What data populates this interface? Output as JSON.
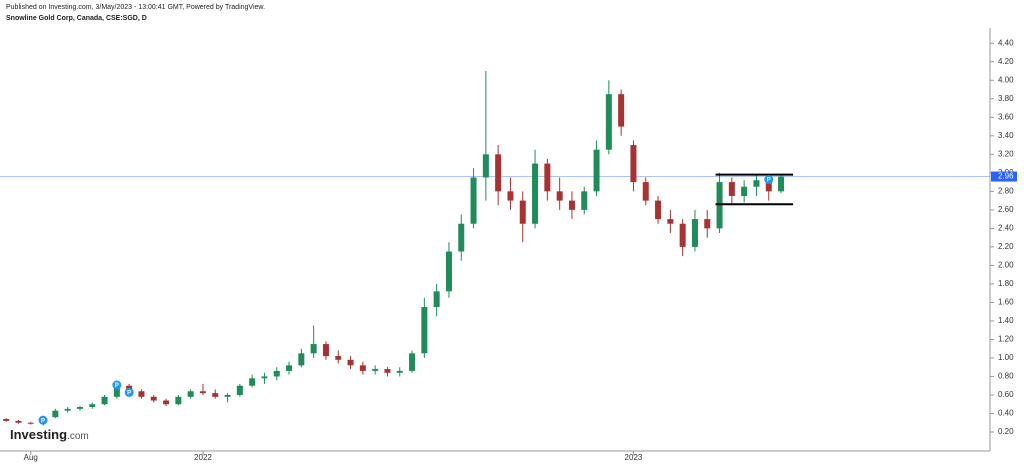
{
  "header": {
    "published": "Published on Investing.com, 3/May/2023 - 13:00:41 GMT, Powered by TradingView.",
    "symbol": "Snowline Gold Corp, Canada, CSE:SGD, D"
  },
  "logo": {
    "name": "Investing",
    "suffix": ".com"
  },
  "chart_data": {
    "type": "candlestick",
    "categories": [
      null,
      null,
      "Aug",
      null,
      null,
      null,
      null,
      null,
      null,
      null,
      null,
      null,
      null,
      null,
      null,
      null,
      "2022",
      null,
      null,
      null,
      null,
      null,
      null,
      null,
      null,
      null,
      null,
      null,
      null,
      null,
      null,
      null,
      null,
      null,
      null,
      null,
      null,
      null,
      null,
      null,
      null,
      null,
      null,
      null,
      null,
      null,
      null,
      null,
      null,
      null,
      null,
      "2023",
      null,
      null,
      null,
      null,
      null,
      null,
      null,
      null,
      null,
      null,
      null,
      null
    ],
    "open": [
      0.34,
      0.32,
      0.3,
      0.29,
      0.36,
      0.43,
      0.45,
      0.47,
      0.5,
      0.58,
      0.7,
      0.64,
      0.58,
      0.54,
      0.5,
      0.58,
      0.64,
      0.62,
      0.58,
      0.6,
      0.7,
      0.78,
      0.8,
      0.86,
      0.92,
      1.05,
      1.15,
      1.02,
      0.98,
      0.92,
      0.86,
      0.88,
      0.84,
      0.86,
      1.05,
      1.55,
      1.72,
      2.15,
      2.45,
      2.95,
      3.2,
      2.8,
      2.7,
      2.45,
      3.1,
      2.8,
      2.7,
      2.6,
      2.8,
      3.25,
      3.85,
      3.3,
      2.9,
      2.7,
      2.5,
      2.45,
      2.2,
      2.5,
      2.4,
      2.9,
      2.75,
      2.85,
      2.92,
      2.8
    ],
    "high": [
      0.35,
      0.33,
      0.31,
      0.36,
      0.45,
      0.47,
      0.48,
      0.52,
      0.6,
      0.74,
      0.72,
      0.66,
      0.6,
      0.56,
      0.6,
      0.66,
      0.72,
      0.66,
      0.62,
      0.72,
      0.82,
      0.84,
      0.9,
      0.96,
      1.1,
      1.35,
      1.18,
      1.08,
      1.02,
      0.96,
      0.92,
      0.9,
      0.9,
      1.08,
      1.65,
      1.8,
      2.25,
      2.55,
      3.05,
      4.1,
      3.3,
      2.95,
      2.8,
      3.25,
      3.15,
      2.95,
      2.8,
      2.85,
      3.35,
      4.0,
      3.9,
      3.35,
      2.95,
      2.75,
      2.6,
      2.5,
      2.6,
      2.6,
      3.0,
      2.95,
      2.92,
      2.98,
      2.96,
      2.98
    ],
    "low": [
      0.31,
      0.29,
      0.28,
      0.27,
      0.35,
      0.41,
      0.43,
      0.45,
      0.49,
      0.56,
      0.62,
      0.56,
      0.52,
      0.48,
      0.49,
      0.56,
      0.6,
      0.56,
      0.52,
      0.58,
      0.68,
      0.72,
      0.76,
      0.82,
      0.9,
      1.0,
      0.98,
      0.94,
      0.88,
      0.82,
      0.82,
      0.8,
      0.8,
      0.84,
      1.0,
      1.45,
      1.65,
      2.05,
      2.4,
      2.7,
      2.65,
      2.6,
      2.25,
      2.4,
      2.7,
      2.6,
      2.5,
      2.55,
      2.75,
      3.2,
      3.4,
      2.8,
      2.65,
      2.45,
      2.35,
      2.1,
      2.15,
      2.3,
      2.35,
      2.65,
      2.68,
      2.75,
      2.7,
      2.78
    ],
    "close": [
      0.32,
      0.3,
      0.29,
      0.35,
      0.43,
      0.45,
      0.47,
      0.5,
      0.58,
      0.7,
      0.64,
      0.58,
      0.54,
      0.5,
      0.58,
      0.64,
      0.62,
      0.58,
      0.6,
      0.7,
      0.78,
      0.8,
      0.86,
      0.92,
      1.05,
      1.15,
      1.02,
      0.98,
      0.92,
      0.86,
      0.88,
      0.84,
      0.86,
      1.05,
      1.55,
      1.72,
      2.15,
      2.45,
      2.95,
      3.2,
      2.8,
      2.7,
      2.45,
      3.1,
      2.8,
      2.7,
      2.6,
      2.8,
      3.25,
      3.85,
      3.5,
      2.9,
      2.7,
      2.5,
      2.45,
      2.2,
      2.5,
      2.4,
      2.9,
      2.75,
      2.85,
      2.92,
      2.8,
      2.96
    ],
    "up_color": "#1f8c5a",
    "down_color": "#a83232",
    "ylim": [
      0.0,
      4.5
    ],
    "yticks": [
      {
        "value": 0.2,
        "label": "0.20"
      },
      {
        "value": 0.4,
        "label": "0.40"
      },
      {
        "value": 0.6,
        "label": "0.60"
      },
      {
        "value": 0.8,
        "label": "0.80"
      },
      {
        "value": 1.0,
        "label": "1.00"
      },
      {
        "value": 1.2,
        "label": "1.20"
      },
      {
        "value": 1.4,
        "label": "1.40"
      },
      {
        "value": 1.6,
        "label": "1.60"
      },
      {
        "value": 1.8,
        "label": "1.80"
      },
      {
        "value": 2.0,
        "label": "2.00"
      },
      {
        "value": 2.2,
        "label": "2.20"
      },
      {
        "value": 2.4,
        "label": "2.40"
      },
      {
        "value": 2.6,
        "label": "2.60"
      },
      {
        "value": 2.8,
        "label": "2.80"
      },
      {
        "value": 3.0,
        "label": "3.00"
      },
      {
        "value": 3.2,
        "label": "3.20"
      },
      {
        "value": 3.4,
        "label": "3.40"
      },
      {
        "value": 3.6,
        "label": "3.60"
      },
      {
        "value": 3.8,
        "label": "3.80"
      },
      {
        "value": 4.0,
        "label": "4.00"
      },
      {
        "value": 4.2,
        "label": "4.20"
      },
      {
        "value": 4.4,
        "label": "4.40"
      }
    ],
    "last_price": {
      "value": 2.96,
      "label": "2.96",
      "color": "#2962ff"
    },
    "channel": {
      "upper": 2.98,
      "lower": 2.66
    },
    "annotations": [
      "P",
      "P",
      "P",
      "P"
    ]
  }
}
